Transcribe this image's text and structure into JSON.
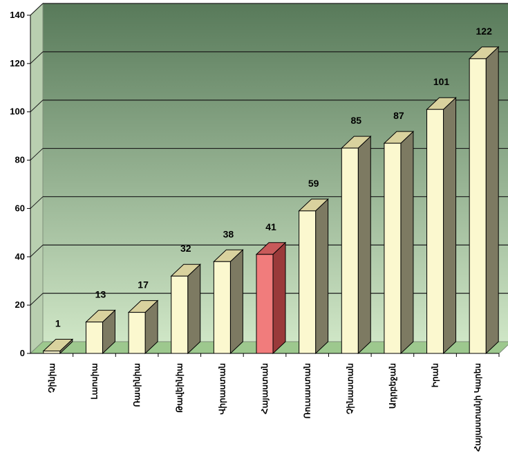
{
  "chart_data": {
    "type": "bar",
    "title": "",
    "xlabel": "",
    "ylabel": "",
    "ylim": [
      0,
      140
    ],
    "yticks": [
      0,
      20,
      40,
      60,
      80,
      100,
      120,
      140
    ],
    "grid": true,
    "categories": [
      "Չինիա",
      "Լաոսիա",
      "Ռասինիա",
      "Թավեինիա",
      "Վիրաստան",
      "Հայաստան",
      "Ռուսաստան",
      "Չինաստան",
      "Ադրբեջան",
      "Իրան",
      "Հայաստանի Կարես"
    ],
    "values": [
      1,
      13,
      17,
      32,
      38,
      41,
      59,
      85,
      87,
      101,
      122
    ],
    "highlight_category": "Հայաստան",
    "colors": {
      "bar_front": "#fbf8cf",
      "bar_top": "#d9d29e",
      "bar_side": "#7d7a62",
      "highlight_front": "#f17c7c",
      "highlight_top": "#c85a5a",
      "highlight_side": "#9a3a3a",
      "wall_top": "#587a5a",
      "wall_bottom": "#cfe6c6",
      "floor": "#9dc88e",
      "gridline": "#1a1a1a"
    }
  }
}
